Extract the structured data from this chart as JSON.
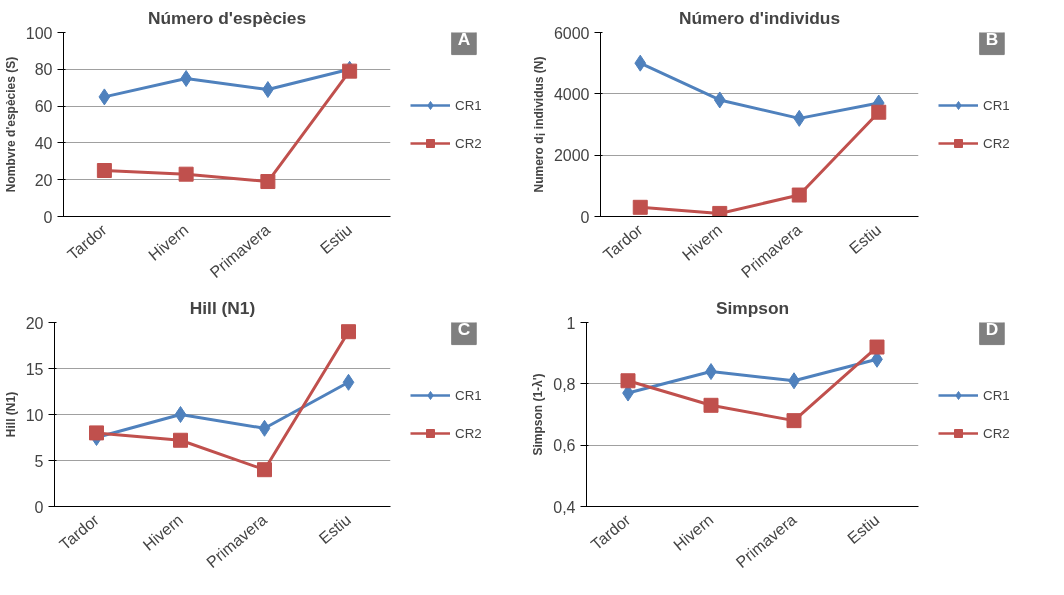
{
  "chart_data": [
    {
      "type": "line",
      "title": "Número d'espècies",
      "ylabel": "Nombvre d'espècies (S)",
      "annotations": [
        "A"
      ],
      "categories": [
        "Tardor",
        "Hivern",
        "Primavera",
        "Estiu"
      ],
      "series": [
        {
          "name": "CR1",
          "color": "#4f81bd",
          "marker": "diamond",
          "values": [
            65,
            75,
            69,
            80
          ]
        },
        {
          "name": "CR2",
          "color": "#c0504d",
          "marker": "square",
          "values": [
            25,
            23,
            19,
            79
          ]
        }
      ],
      "ylim": [
        0,
        100
      ],
      "yticks": [
        0,
        20,
        40,
        60,
        80,
        100
      ],
      "grid": "y",
      "legend": "right",
      "line_style": "solid"
    },
    {
      "type": "line",
      "title": "Número d'individus",
      "ylabel": "Numero d¡ individus (N)",
      "annotations": [
        "B"
      ],
      "categories": [
        "Tardor",
        "Hivern",
        "Primavera",
        "Estiu"
      ],
      "series": [
        {
          "name": "CR1",
          "color": "#4f81bd",
          "marker": "diamond",
          "values": [
            5000,
            3800,
            3200,
            3700
          ]
        },
        {
          "name": "CR2",
          "color": "#c0504d",
          "marker": "square",
          "values": [
            300,
            100,
            700,
            3400
          ]
        }
      ],
      "ylim": [
        0,
        6000
      ],
      "yticks": [
        0,
        2000,
        4000,
        6000
      ],
      "grid": "y",
      "legend": "right",
      "line_style": "solid"
    },
    {
      "type": "line",
      "title": "Hill (N1)",
      "ylabel": "Hill (N1)",
      "annotations": [
        "C"
      ],
      "categories": [
        "Tardor",
        "Hivern",
        "Primavera",
        "Estiu"
      ],
      "series": [
        {
          "name": "CR1",
          "color": "#4f81bd",
          "marker": "diamond",
          "values": [
            7.5,
            10,
            8.5,
            13.5
          ]
        },
        {
          "name": "CR2",
          "color": "#c0504d",
          "marker": "square",
          "values": [
            8,
            7.2,
            4,
            19
          ]
        }
      ],
      "ylim": [
        0,
        20
      ],
      "yticks": [
        0,
        5,
        10,
        15,
        20
      ],
      "grid": "y",
      "legend": "right",
      "line_style": "solid"
    },
    {
      "type": "line",
      "title": "Simpson",
      "ylabel": "Simpson (1-λ')",
      "annotations": [
        "D"
      ],
      "categories": [
        "Tardor",
        "Hivern",
        "Primavera",
        "Estiu"
      ],
      "series": [
        {
          "name": "CR1",
          "color": "#4f81bd",
          "marker": "diamond",
          "values": [
            0.77,
            0.84,
            0.81,
            0.88
          ]
        },
        {
          "name": "CR2",
          "color": "#c0504d",
          "marker": "square",
          "values": [
            0.81,
            0.73,
            0.68,
            0.92
          ]
        }
      ],
      "ylim": [
        0.4,
        1
      ],
      "yticks": [
        {
          "value": 0.4,
          "label": "0,4"
        },
        {
          "value": 0.6,
          "label": "0,6"
        },
        {
          "value": 0.8,
          "label": "0,8"
        },
        1
      ],
      "grid": "y",
      "legend": "right",
      "line_style": "solid"
    }
  ]
}
